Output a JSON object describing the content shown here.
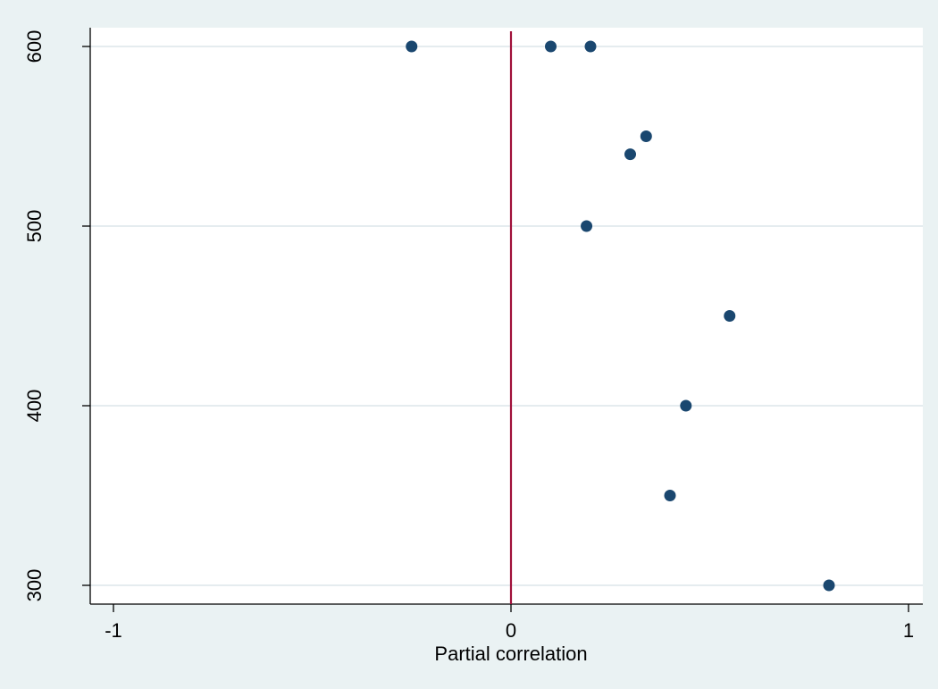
{
  "chart_data": {
    "type": "scatter",
    "title": "",
    "xlabel": "Partial correlation",
    "ylabel": "",
    "xlim": [
      -1,
      1
    ],
    "ylim": [
      300,
      600
    ],
    "x_ticks": [
      -1,
      0,
      1
    ],
    "x_tick_labels": [
      "-1",
      "0",
      "1"
    ],
    "y_ticks": [
      300,
      400,
      500,
      600
    ],
    "y_tick_labels": [
      "300",
      "400",
      "500",
      "600"
    ],
    "grid": "horizontal",
    "reference_line": {
      "x": 0,
      "color": "#a0103a"
    },
    "points": [
      {
        "x": -0.25,
        "y": 600
      },
      {
        "x": 0.1,
        "y": 600
      },
      {
        "x": 0.2,
        "y": 600
      },
      {
        "x": 0.34,
        "y": 550
      },
      {
        "x": 0.3,
        "y": 540
      },
      {
        "x": 0.19,
        "y": 500
      },
      {
        "x": 0.55,
        "y": 450
      },
      {
        "x": 0.44,
        "y": 400
      },
      {
        "x": 0.4,
        "y": 350
      },
      {
        "x": 0.8,
        "y": 300
      }
    ],
    "colors": {
      "background": "#eaf2f3",
      "plot_background": "#ffffff",
      "marker": "#1a476f",
      "gridline": "#e5ecef",
      "axis": "#000000",
      "reference_line": "#a0103a"
    }
  }
}
